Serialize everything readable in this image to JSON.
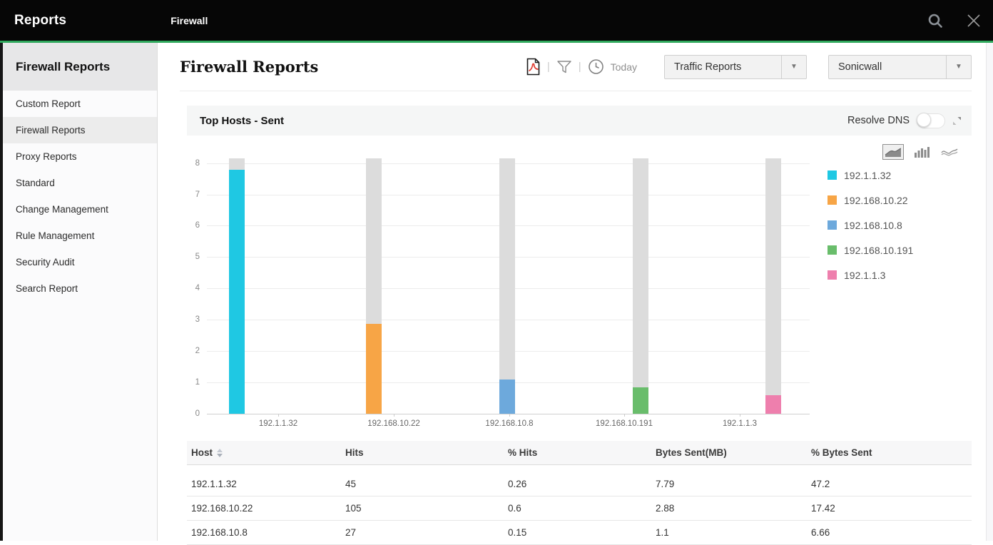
{
  "colors": {
    "accent_green": "#2fa85c",
    "topbar_bg": "#060606",
    "bar_background": "#dcdcdc"
  },
  "topbar": {
    "brand": "Reports",
    "tab": "Firewall"
  },
  "sidebar": {
    "title": "Firewall Reports",
    "items": [
      {
        "label": "Custom Report",
        "selected": false
      },
      {
        "label": "Firewall Reports",
        "selected": true
      },
      {
        "label": "Proxy Reports",
        "selected": false
      },
      {
        "label": "Standard",
        "selected": false
      },
      {
        "label": "Change Management",
        "selected": false
      },
      {
        "label": "Rule Management",
        "selected": false
      },
      {
        "label": "Security Audit",
        "selected": false
      },
      {
        "label": "Search Report",
        "selected": false
      }
    ]
  },
  "toolbar": {
    "page_title": "Firewall Reports",
    "today_label": "Today",
    "report_type_value": "Traffic Reports",
    "device_value": "Sonicwall"
  },
  "panel": {
    "title": "Top Hosts - Sent",
    "resolve_dns_label": "Resolve DNS",
    "resolve_dns_state": "off"
  },
  "chart_data": {
    "type": "bar",
    "title": "Top Hosts - Sent",
    "categories": [
      "192.1.1.32",
      "192.168.10.22",
      "192.168.10.8",
      "192.168.10.191",
      "192.1.1.3"
    ],
    "series": [
      {
        "name": "192.1.1.32",
        "value": 7.79,
        "color": "#1fc8e3"
      },
      {
        "name": "192.168.10.22",
        "value": 2.88,
        "color": "#f7a546"
      },
      {
        "name": "192.168.10.8",
        "value": 1.1,
        "color": "#6da9dc"
      },
      {
        "name": "192.168.10.191",
        "value": 0.85,
        "color": "#69bd6b"
      },
      {
        "name": "192.1.1.3",
        "value": 0.6,
        "color": "#ee7fad"
      }
    ],
    "background_bar_value": 8.15,
    "ylim": [
      0,
      8.15
    ],
    "yticks": [
      0,
      1,
      2,
      3,
      4,
      5,
      6,
      7,
      8
    ],
    "xlabel": "",
    "ylabel": "",
    "grid": true,
    "legend_position": "right"
  },
  "table": {
    "columns": [
      "Host",
      "Hits",
      "% Hits",
      "Bytes Sent(MB)",
      "% Bytes Sent"
    ],
    "sorted_column": "Host",
    "rows": [
      [
        "192.1.1.32",
        "45",
        "0.26",
        "7.79",
        "47.2"
      ],
      [
        "192.168.10.22",
        "105",
        "0.6",
        "2.88",
        "17.42"
      ],
      [
        "192.168.10.8",
        "27",
        "0.15",
        "1.1",
        "6.66"
      ]
    ]
  }
}
